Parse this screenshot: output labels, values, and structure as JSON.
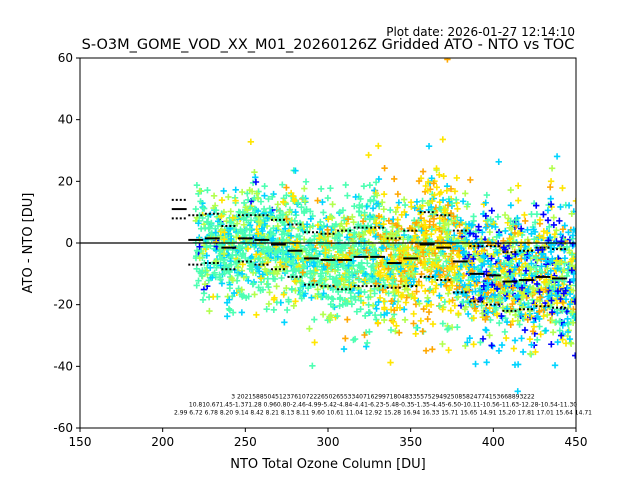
{
  "plot_date": "Plot date: 2026-01-27 12:14:10",
  "chart_data": {
    "type": "scatter",
    "title": "S-O3M_GOME_VOD_XX_M01_20260126Z Gridded ATO - NTO vs TOC",
    "xlabel": "NTO Total Ozone Column [DU]",
    "ylabel": "ATO - NTO [DU]",
    "xlim": [
      150,
      450
    ],
    "ylim": [
      -60,
      60
    ],
    "xticks": [
      150,
      200,
      250,
      300,
      350,
      400,
      450
    ],
    "yticks": [
      -60,
      -40,
      -20,
      0,
      20,
      40,
      60
    ],
    "zero_line": 0,
    "scatter_marker": "+",
    "scatter_colors": [
      "#0000ff",
      "#00d4ff",
      "#4dffb2",
      "#b2ff4d",
      "#ffe600",
      "#ffa800"
    ],
    "scatter_description_bins": [
      {
        "x": 210,
        "mean": 11.0,
        "std": 3.0
      },
      {
        "x": 220,
        "mean": 1.0,
        "std": 8.0
      },
      {
        "x": 230,
        "mean": 1.5,
        "std": 8.0
      },
      {
        "x": 240,
        "mean": -1.5,
        "std": 7.0
      },
      {
        "x": 250,
        "mean": 1.5,
        "std": 7.5
      },
      {
        "x": 260,
        "mean": 1.0,
        "std": 8.0
      },
      {
        "x": 270,
        "mean": -0.5,
        "std": 8.0
      },
      {
        "x": 280,
        "mean": -2.5,
        "std": 8.5
      },
      {
        "x": 290,
        "mean": -5.0,
        "std": 8.5
      },
      {
        "x": 300,
        "mean": -5.5,
        "std": 8.5
      },
      {
        "x": 310,
        "mean": -5.5,
        "std": 9.5
      },
      {
        "x": 320,
        "mean": -4.5,
        "std": 9.5
      },
      {
        "x": 330,
        "mean": -4.5,
        "std": 9.5
      },
      {
        "x": 340,
        "mean": -6.5,
        "std": 8.0
      },
      {
        "x": 350,
        "mean": -5.0,
        "std": 9.0
      },
      {
        "x": 360,
        "mean": -0.5,
        "std": 10.5
      },
      {
        "x": 370,
        "mean": -1.5,
        "std": 10.5
      },
      {
        "x": 380,
        "mean": -6.0,
        "std": 10.0
      },
      {
        "x": 390,
        "mean": -10.0,
        "std": 9.0
      },
      {
        "x": 400,
        "mean": -10.5,
        "std": 9.5
      },
      {
        "x": 410,
        "mean": -12.5,
        "std": 9.5
      },
      {
        "x": 420,
        "mean": -12.0,
        "std": 9.5
      },
      {
        "x": 430,
        "mean": -11.0,
        "std": 9.5
      },
      {
        "x": 440,
        "mean": -11.5,
        "std": 9.5
      }
    ],
    "stat_rows": [
      "3 202158850451237610722265026553340716299718048335575294925085824774153668893222",
      "10.810.671.45-1.371.28 0.960.80-2.46-4.99-5.42-4.84-4.41-6.23-5.48-0.35-1.35-4.45-6.50-10.11-10.56-11.63-12.28-10.54-11.30",
      "2.99 6.72 6.78 8.20 9.14 8.42 8.21 8.13 8.11 9.60 10.61 11.04 12.92 15.28 16.94 16.33 15.71 15.65 14.91 15.20 17.81 17.01 15.64 14.71"
    ]
  }
}
